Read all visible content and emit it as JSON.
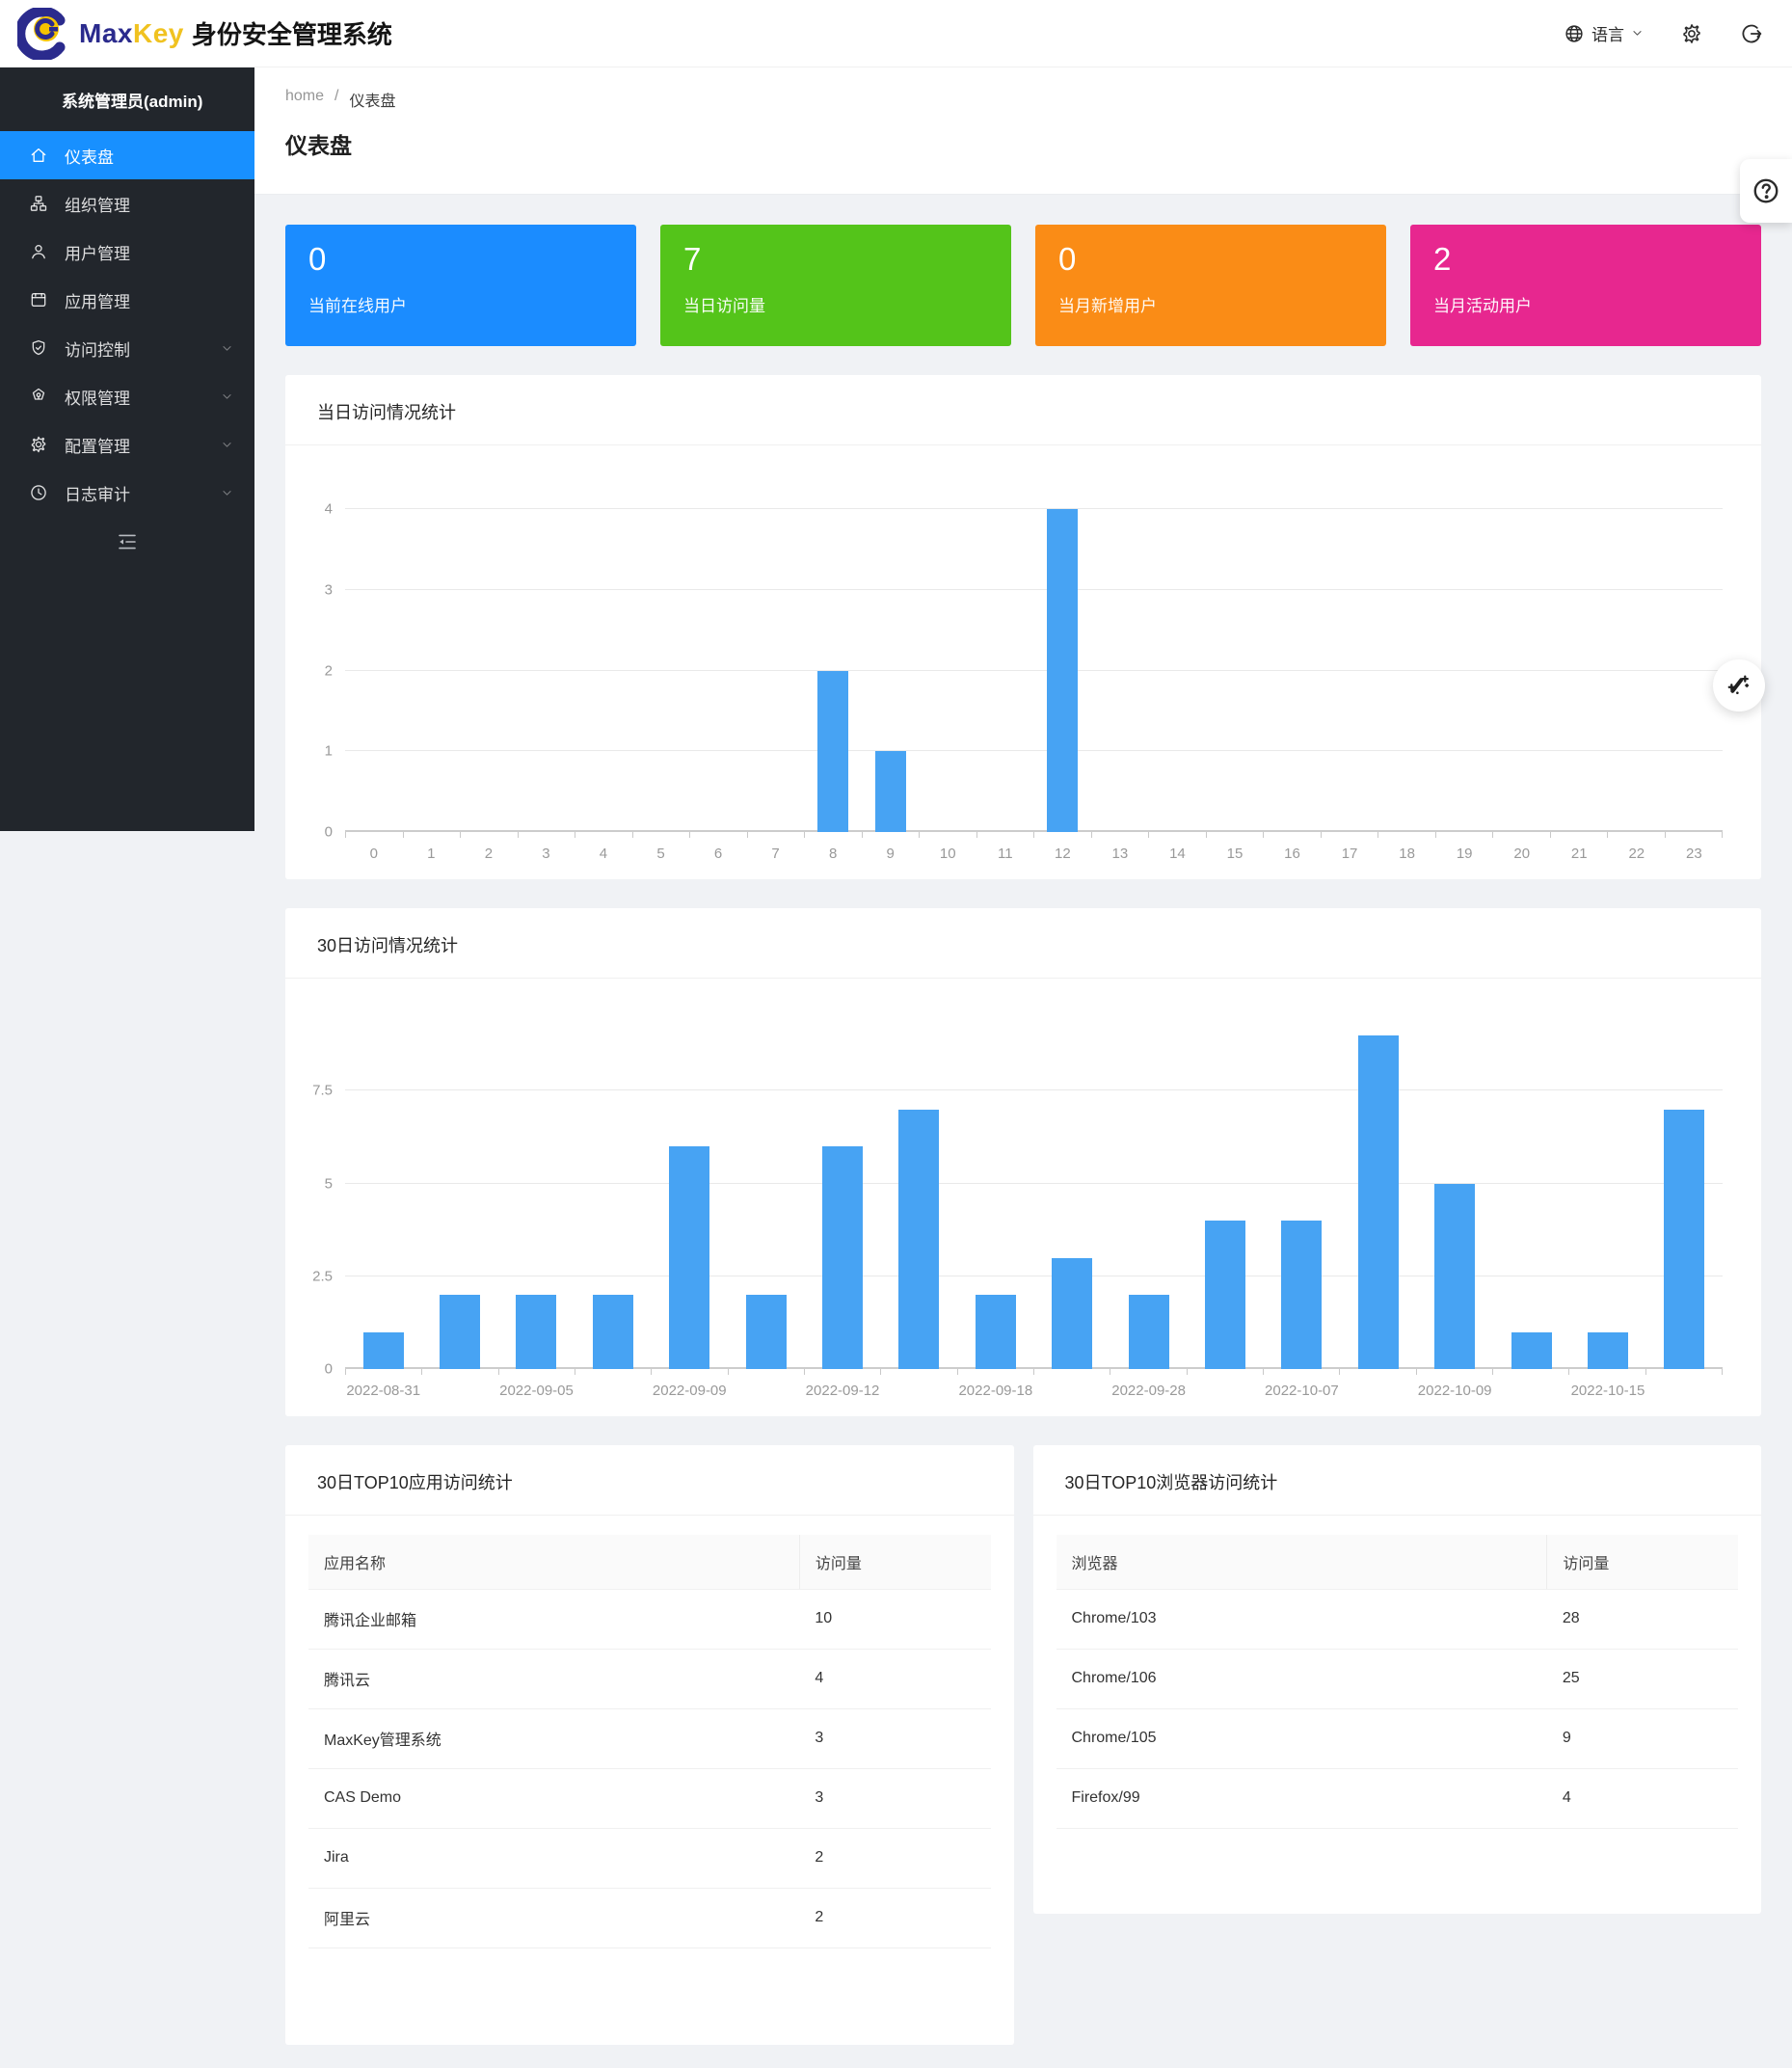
{
  "header": {
    "brand_max": "Max",
    "brand_key": "Key",
    "brand_suffix": "身份安全管理系统",
    "language_label": "语言",
    "colors": {
      "brand_max": "#2b2b8d",
      "brand_key": "#f0c220"
    }
  },
  "sidebar": {
    "user_title": "系统管理员(admin)",
    "active_color": "#1890ff",
    "items": [
      {
        "id": "dashboard",
        "label": "仪表盘",
        "icon": "home-icon",
        "active": true,
        "expandable": false
      },
      {
        "id": "organizations",
        "label": "组织管理",
        "icon": "org-icon",
        "active": false,
        "expandable": false
      },
      {
        "id": "users",
        "label": "用户管理",
        "icon": "user-icon",
        "active": false,
        "expandable": false
      },
      {
        "id": "applications",
        "label": "应用管理",
        "icon": "app-window-icon",
        "active": false,
        "expandable": false
      },
      {
        "id": "access",
        "label": "访问控制",
        "icon": "shield-check-icon",
        "active": false,
        "expandable": true
      },
      {
        "id": "permissions",
        "label": "权限管理",
        "icon": "permission-icon",
        "active": false,
        "expandable": true
      },
      {
        "id": "config",
        "label": "配置管理",
        "icon": "gear-icon",
        "active": false,
        "expandable": true
      },
      {
        "id": "audit",
        "label": "日志审计",
        "icon": "clock-icon",
        "active": false,
        "expandable": true
      }
    ]
  },
  "breadcrumb": {
    "home": "home",
    "separator": "/",
    "current": "仪表盘"
  },
  "page_title": "仪表盘",
  "stat_cards": [
    {
      "value": "0",
      "label": "当前在线用户",
      "color": "#1b8cff"
    },
    {
      "value": "7",
      "label": "当日访问量",
      "color": "#54c41a"
    },
    {
      "value": "0",
      "label": "当月新增用户",
      "color": "#fa8c16"
    },
    {
      "value": "2",
      "label": "当月活动用户",
      "color": "#e7278f"
    }
  ],
  "chart_data": [
    {
      "type": "bar",
      "title": "当日访问情况统计",
      "xlabel": "",
      "ylabel": "",
      "x": [
        "0",
        "1",
        "2",
        "3",
        "4",
        "5",
        "6",
        "7",
        "8",
        "9",
        "10",
        "11",
        "12",
        "13",
        "14",
        "15",
        "16",
        "17",
        "18",
        "19",
        "20",
        "21",
        "22",
        "23"
      ],
      "values": [
        0,
        0,
        0,
        0,
        0,
        0,
        0,
        0,
        2,
        1,
        0,
        0,
        4,
        0,
        0,
        0,
        0,
        0,
        0,
        0,
        0,
        0,
        0,
        0
      ],
      "yticks": [
        0,
        1,
        2,
        3,
        4
      ],
      "ylim": [
        0,
        4
      ],
      "bar_color": "#47a3f3",
      "grid": true,
      "legend": false
    },
    {
      "type": "bar",
      "title": "30日访问情况统计",
      "xlabel": "",
      "ylabel": "",
      "x": [
        "2022-08-31",
        "",
        "2022-09-05",
        "",
        "2022-09-09",
        "",
        "2022-09-12",
        "",
        "2022-09-18",
        "",
        "2022-09-28",
        "",
        "2022-10-07",
        "",
        "2022-10-09",
        "",
        "2022-10-15",
        ""
      ],
      "values": [
        1,
        2,
        2,
        2,
        6,
        2,
        6,
        7,
        2,
        3,
        2,
        4,
        4,
        9,
        5,
        1,
        1,
        7
      ],
      "yticks": [
        0,
        2.5,
        5,
        7.5
      ],
      "ylim": [
        0,
        10
      ],
      "bar_color": "#47a3f3",
      "grid": true,
      "legend": false
    }
  ],
  "tables": [
    {
      "title": "30日TOP10应用访问统计",
      "columns": [
        "应用名称",
        "访问量"
      ],
      "rows": [
        [
          "腾讯企业邮箱",
          "10"
        ],
        [
          "腾讯云",
          "4"
        ],
        [
          "MaxKey管理系统",
          "3"
        ],
        [
          "CAS Demo",
          "3"
        ],
        [
          "Jira",
          "2"
        ],
        [
          "阿里云",
          "2"
        ]
      ]
    },
    {
      "title": "30日TOP10浏览器访问统计",
      "columns": [
        "浏览器",
        "访问量"
      ],
      "rows": [
        [
          "Chrome/103",
          "28"
        ],
        [
          "Chrome/106",
          "25"
        ],
        [
          "Chrome/105",
          "9"
        ],
        [
          "Firefox/99",
          "4"
        ]
      ]
    }
  ]
}
